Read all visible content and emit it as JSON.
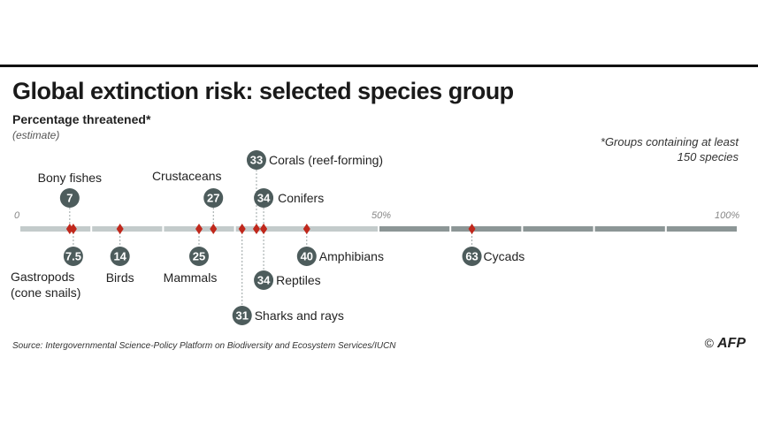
{
  "chart_data": {
    "type": "scatter",
    "title": "Global extinction risk: selected species group",
    "subtitle": "Percentage threatened*",
    "subnote": "(estimate)",
    "footnote": "*Groups containing at least 150 species",
    "axis_labels": [
      "0",
      "50%",
      "100%"
    ],
    "xlim": [
      0,
      100
    ],
    "accent_color": "#c0281c",
    "badge_color": "#4d5c5c",
    "points": [
      {
        "label": "Bony fishes",
        "value": 7,
        "display": "7",
        "side": "above",
        "row": 1
      },
      {
        "label": "Gastropods",
        "label2": "(cone snails)",
        "value": 7.5,
        "display": "7.5",
        "side": "below",
        "row": 1
      },
      {
        "label": "Birds",
        "value": 14,
        "display": "14",
        "side": "below",
        "row": 1
      },
      {
        "label": "Mammals",
        "value": 25,
        "display": "25",
        "side": "below",
        "row": 1
      },
      {
        "label": "Crustaceans",
        "value": 27,
        "display": "27",
        "side": "above",
        "row": 1
      },
      {
        "label": "Sharks and rays",
        "value": 31,
        "display": "31",
        "side": "below",
        "row": 3
      },
      {
        "label": "Corals (reef-forming)",
        "value": 33,
        "display": "33",
        "side": "above",
        "row": 2
      },
      {
        "label": "Conifers",
        "value": 34,
        "display": "34",
        "side": "above",
        "row": 1
      },
      {
        "label": "Reptiles",
        "value": 34,
        "display": "34",
        "side": "below",
        "row": 2
      },
      {
        "label": "Amphibians",
        "value": 40,
        "display": "40",
        "side": "below",
        "row": 1
      },
      {
        "label": "Cycads",
        "value": 63,
        "display": "63",
        "side": "below",
        "row": 1
      }
    ]
  },
  "source": "Source: Intergovernmental Science-Policy Platform on Biodiversity and Ecosystem Services/IUCN",
  "logo": {
    "symbol": "©",
    "text": "AFP"
  }
}
